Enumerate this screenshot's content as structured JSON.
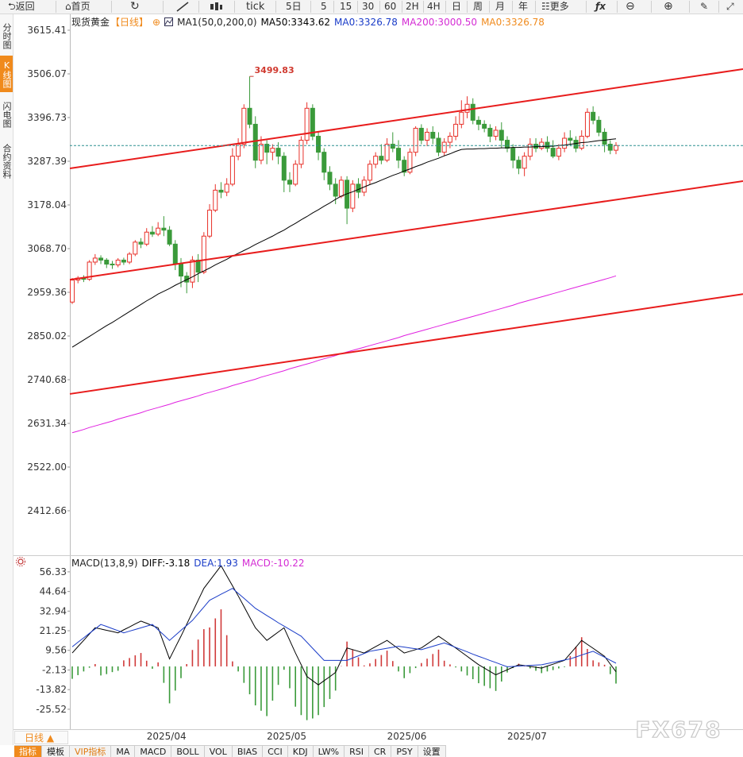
{
  "toolbar": {
    "back": "返回",
    "home": "首页",
    "periods": [
      "tick",
      "5日",
      "5",
      "15",
      "30",
      "60",
      "2H",
      "4H",
      "日",
      "周",
      "月",
      "年"
    ],
    "more": "更多"
  },
  "side_tabs": [
    "分时图",
    "K线图",
    "闪电图",
    "合约资料"
  ],
  "period_selector": "日线",
  "indicator_tabs": [
    "指标",
    "模板",
    "VIP指标",
    "MA",
    "MACD",
    "BOLL",
    "VOL",
    "BIAS",
    "CCI",
    "KDJ",
    "LW%",
    "RSI",
    "CR",
    "PSY",
    "设置"
  ],
  "watermark": "FX678",
  "chart_data": [
    {
      "type": "candlestick",
      "title": "现货黄金",
      "subtitle": "【日线】",
      "indicator": "MA1(50,0,200,0)",
      "legend": [
        {
          "label": "MA50:3343.62",
          "color": "#000000"
        },
        {
          "label": "MA0:3326.78",
          "color": "#1a3cc8"
        },
        {
          "label": "MA200:3000.50",
          "color": "#d42cd4"
        },
        {
          "label": "MA0:3326.78",
          "color": "#f08a1c"
        }
      ],
      "categories": [
        null,
        null,
        null,
        null,
        null,
        null,
        null,
        null,
        null,
        null,
        null,
        null,
        null,
        "2025/04",
        null,
        null,
        null,
        null,
        null,
        null,
        null,
        null,
        null,
        null,
        null,
        null,
        null,
        null,
        null,
        null,
        null,
        null,
        null,
        null,
        "2025/05",
        null,
        null,
        null,
        null,
        null,
        null,
        null,
        null,
        null,
        null,
        null,
        null,
        null,
        null,
        null,
        null,
        null,
        null,
        null,
        null,
        "2025/06",
        null,
        null,
        null,
        null,
        null,
        null,
        null,
        null,
        null,
        null,
        null,
        null,
        null,
        null,
        null,
        null,
        null,
        null,
        null,
        null,
        "2025/07",
        null,
        null,
        null,
        null,
        null,
        null,
        null,
        null,
        null,
        null,
        null,
        null,
        null,
        null,
        null,
        null,
        null,
        null,
        null
      ],
      "open": [
        2935,
        2990,
        2995,
        2992,
        3035,
        3045,
        3040,
        3030,
        3028,
        3040,
        3035,
        3055,
        3085,
        3080,
        3110,
        3105,
        3120,
        3115,
        3080,
        3030,
        3000,
        2985,
        3040,
        3010,
        3100,
        3165,
        3215,
        3210,
        3230,
        3300,
        3330,
        3420,
        3380,
        3290,
        3330,
        3310,
        3320,
        3300,
        3240,
        3230,
        3280,
        3340,
        3420,
        3350,
        3310,
        3260,
        3230,
        3200,
        3240,
        3170,
        3230,
        3210,
        3240,
        3280,
        3300,
        3290,
        3330,
        3320,
        3290,
        3260,
        3310,
        3370,
        3340,
        3360,
        3345,
        3310,
        3335,
        3350,
        3380,
        3410,
        3430,
        3390,
        3380,
        3370,
        3350,
        3365,
        3340,
        3320,
        3290,
        3270,
        3300,
        3330,
        3320,
        3335,
        3320,
        3300,
        3320,
        3345,
        3340,
        3320,
        3350,
        3410,
        3390,
        3360,
        3330,
        3315
      ],
      "high": [
        2995,
        3000,
        3002,
        3040,
        3055,
        3052,
        3045,
        3038,
        3045,
        3046,
        3060,
        3090,
        3095,
        3120,
        3125,
        3135,
        3150,
        3125,
        3090,
        3045,
        3010,
        3050,
        3055,
        3110,
        3180,
        3230,
        3235,
        3245,
        3320,
        3345,
        3430,
        3499.83,
        3400,
        3350,
        3340,
        3330,
        3335,
        3310,
        3260,
        3290,
        3350,
        3435,
        3430,
        3360,
        3320,
        3275,
        3245,
        3250,
        3250,
        3240,
        3245,
        3250,
        3290,
        3310,
        3330,
        3345,
        3360,
        3340,
        3300,
        3320,
        3375,
        3380,
        3370,
        3375,
        3360,
        3345,
        3360,
        3400,
        3440,
        3450,
        3445,
        3400,
        3390,
        3380,
        3375,
        3385,
        3350,
        3330,
        3300,
        3310,
        3345,
        3345,
        3345,
        3350,
        3340,
        3330,
        3360,
        3365,
        3350,
        3365,
        3420,
        3425,
        3400,
        3370,
        3340,
        3335
      ],
      "low": [
        2930,
        2982,
        2985,
        2988,
        3028,
        3030,
        3020,
        3018,
        3022,
        3028,
        3030,
        3050,
        3070,
        3075,
        3098,
        3100,
        3100,
        3075,
        3015,
        2972,
        2957,
        2970,
        2985,
        3005,
        3095,
        3160,
        3195,
        3200,
        3225,
        3290,
        3320,
        3370,
        3270,
        3280,
        3280,
        3290,
        3280,
        3210,
        3210,
        3225,
        3270,
        3330,
        3340,
        3290,
        3240,
        3215,
        3180,
        3195,
        3130,
        3160,
        3195,
        3200,
        3230,
        3270,
        3280,
        3285,
        3310,
        3270,
        3250,
        3255,
        3300,
        3330,
        3325,
        3330,
        3300,
        3300,
        3320,
        3340,
        3370,
        3395,
        3380,
        3365,
        3360,
        3335,
        3340,
        3320,
        3310,
        3270,
        3255,
        3250,
        3290,
        3310,
        3315,
        3310,
        3295,
        3290,
        3310,
        3325,
        3310,
        3315,
        3345,
        3380,
        3350,
        3310,
        3305,
        3305
      ],
      "close": [
        2990,
        2995,
        2992,
        3035,
        3045,
        3040,
        3030,
        3028,
        3040,
        3035,
        3055,
        3085,
        3080,
        3110,
        3105,
        3120,
        3115,
        3080,
        3030,
        3000,
        2985,
        3040,
        3010,
        3100,
        3165,
        3215,
        3210,
        3230,
        3300,
        3330,
        3420,
        3380,
        3290,
        3330,
        3310,
        3320,
        3300,
        3240,
        3230,
        3280,
        3340,
        3420,
        3350,
        3310,
        3260,
        3230,
        3200,
        3240,
        3170,
        3230,
        3210,
        3240,
        3280,
        3300,
        3290,
        3330,
        3320,
        3290,
        3260,
        3310,
        3370,
        3340,
        3360,
        3345,
        3310,
        3335,
        3350,
        3380,
        3410,
        3430,
        3390,
        3380,
        3370,
        3350,
        3365,
        3340,
        3320,
        3290,
        3270,
        3300,
        3330,
        3320,
        3335,
        3320,
        3300,
        3320,
        3345,
        3340,
        3320,
        3350,
        3410,
        3390,
        3360,
        3330,
        3315,
        3326.78
      ],
      "up_color": "#e8312a",
      "down_color": "#3a9a3a",
      "price_line_color": "#2a9090",
      "series": [
        {
          "color": "#000000",
          "values": [
            2822,
            2831,
            2840,
            2849,
            2858,
            2867,
            2876,
            2884,
            2893,
            2902,
            2911,
            2920,
            2929,
            2938,
            2946,
            2955,
            2962,
            2969,
            2977,
            2984,
            2991,
            2998,
            3006,
            3013,
            3020,
            3028,
            3035,
            3042,
            3050,
            3057,
            3064,
            3071,
            3079,
            3086,
            3093,
            3100,
            3108,
            3115,
            3124,
            3132,
            3141,
            3149,
            3158,
            3166,
            3175,
            3183,
            3192,
            3200,
            3206,
            3211,
            3217,
            3223,
            3229,
            3234,
            3240,
            3246,
            3252,
            3257,
            3263,
            3268,
            3274,
            3279,
            3285,
            3290,
            3295,
            3301,
            3306,
            3312,
            3317,
            3318,
            3318,
            3319,
            3319,
            3320,
            3320,
            3321,
            3321,
            3322,
            3322,
            3323,
            3323,
            3324,
            3324,
            3325,
            3325,
            3327,
            3328,
            3330,
            3332,
            3334,
            3335,
            3337,
            3339,
            3340,
            3342,
            3343.62
          ]
        },
        {
          "color": "#e020e0",
          "values": [
            2608,
            2612,
            2616,
            2621,
            2625,
            2629,
            2633,
            2637,
            2642,
            2646,
            2650,
            2654,
            2658,
            2663,
            2667,
            2671,
            2675,
            2679,
            2684,
            2688,
            2692,
            2696,
            2700,
            2705,
            2709,
            2713,
            2717,
            2721,
            2726,
            2730,
            2734,
            2738,
            2742,
            2747,
            2751,
            2755,
            2759,
            2763,
            2768,
            2772,
            2776,
            2780,
            2784,
            2789,
            2793,
            2797,
            2801,
            2806,
            2810,
            2814,
            2818,
            2822,
            2826,
            2830,
            2834,
            2838,
            2842,
            2846,
            2851,
            2855,
            2859,
            2863,
            2867,
            2871,
            2875,
            2879,
            2883,
            2887,
            2891,
            2895,
            2899,
            2903,
            2907,
            2911,
            2915,
            2919,
            2923,
            2927,
            2932,
            2936,
            2940,
            2944,
            2948,
            2952,
            2956,
            2960,
            2964,
            2968,
            2972,
            2976,
            2980,
            2984,
            2988,
            2992,
            2996,
            3000.5
          ]
        }
      ],
      "trendlines": [
        {
          "color": "#e81c1c",
          "values": [
            3269.5,
            3518
          ]
        },
        {
          "color": "#e81c1c",
          "values": [
            2991,
            3237.7
          ]
        },
        {
          "color": "#e81c1c",
          "values": [
            2705,
            2955
          ]
        }
      ],
      "ylim": [
        2303.3,
        3655.2
      ],
      "yticks": [
        3615.41,
        3506.07,
        3396.73,
        3287.39,
        3178.04,
        {
          "value": 3068.7,
          "label": "3068.70"
        },
        2959.36,
        2850.02,
        2740.68,
        2631.34,
        {
          "value": 2522,
          "label": "2522.00"
        },
        2412.66
      ]
    },
    {
      "type": "macd",
      "title": "MACD(13,8,9)",
      "series": [
        {
          "name": "DIFF:-3.18",
          "color": "#000000",
          "values": [
            8,
            11.8,
            15.5,
            19.3,
            23,
            22.3,
            21.5,
            20.8,
            20,
            21.8,
            23.5,
            25.3,
            27,
            25.7,
            24.3,
            23,
            13.8,
            4.5,
            11.3,
            18,
            25.1,
            32.3,
            39.4,
            46.5,
            51,
            55.5,
            60,
            54,
            48,
            42,
            35.7,
            29.3,
            23,
            19.3,
            15.5,
            18,
            20.5,
            23,
            15.5,
            8,
            1,
            -6,
            -8.5,
            -11,
            -8.5,
            -6.1,
            -3.6,
            3.7,
            11,
            10,
            9,
            8,
            9.9,
            11.8,
            13.6,
            15.5,
            13,
            10.5,
            8,
            9,
            10,
            11,
            13.3,
            15.7,
            18,
            15.7,
            13.3,
            11,
            8.5,
            6,
            3.5,
            1,
            -1,
            -3,
            -5,
            -3.5,
            -2,
            -0.5,
            1,
            0.5,
            0,
            -0.5,
            -1,
            0.2,
            1.3,
            2.5,
            3.6,
            7.6,
            11.5,
            15.5,
            13.1,
            10.8,
            8.4,
            6,
            1.4,
            -3.18
          ]
        },
        {
          "name": "DEA:1.93",
          "color": "#1a3cc8",
          "values": [
            11.7,
            14.4,
            17,
            19.7,
            22.3,
            25,
            23.8,
            22.5,
            21.3,
            20,
            21,
            22,
            23,
            24,
            25,
            21.8,
            18.7,
            15.5,
            18.5,
            21.5,
            24.4,
            27.4,
            31.4,
            35.4,
            39.4,
            41.2,
            43,
            44.7,
            46.5,
            43.5,
            40.6,
            37.6,
            34.6,
            32.5,
            30.3,
            28.2,
            26,
            24,
            22,
            20,
            18,
            14.4,
            10.8,
            7.2,
            3.6,
            3.6,
            3.6,
            3.6,
            3.6,
            5,
            6.3,
            7.7,
            9,
            9.6,
            10.2,
            10.8,
            11.4,
            12,
            11.5,
            11,
            10.5,
            10,
            11,
            12,
            13,
            14,
            12.7,
            11.3,
            10,
            8.7,
            7.3,
            6,
            4.8,
            3.5,
            2.3,
            1,
            -0.2,
            0,
            0.2,
            0.4,
            0.6,
            0.8,
            1,
            1.7,
            2.4,
            3.1,
            3.8,
            4.5,
            5.6,
            6.8,
            7.9,
            9,
            7.2,
            5.5,
            3.7,
            1.93
          ]
        }
      ],
      "histogram": {
        "name": "MACD:-10.22",
        "color": "#d42cd4",
        "up_color": "#d03a3a",
        "down_color": "#3a9a3a",
        "values": [
          -7.4,
          -5.2,
          -3,
          -0.8,
          1.4,
          -5.4,
          -4.6,
          -3.4,
          -2.6,
          3.6,
          5,
          6.6,
          8,
          3.4,
          -1.4,
          2.4,
          -9.8,
          -22,
          -14.4,
          -7,
          1.4,
          9.8,
          16,
          22.2,
          23.2,
          28.6,
          34,
          18.6,
          3,
          -3,
          -9.8,
          -16.6,
          -23.2,
          -26.4,
          -29.6,
          -20.4,
          -11,
          -2,
          -13,
          -24,
          -29,
          -32,
          -31,
          -29,
          -24.2,
          -19.4,
          -14.4,
          0.2,
          14.8,
          10,
          5.4,
          0.6,
          1.8,
          4.4,
          6.8,
          9.4,
          3.2,
          -3,
          -7,
          -4,
          -1,
          2,
          4.6,
          7.4,
          10,
          3.4,
          1.2,
          -0.6,
          -3,
          -5.4,
          -7.6,
          -10,
          -11.6,
          -13,
          -14.6,
          -9,
          -3.6,
          -1,
          1.6,
          0.2,
          -1.2,
          -2.6,
          -4,
          -3,
          -2.2,
          -1.2,
          -0.4,
          6.2,
          11.8,
          17.4,
          10.4,
          3.6,
          2.4,
          1,
          -4.6,
          -10.22
        ]
      },
      "ylim": [
        -37.4,
        64.8
      ],
      "yticks": [
        56.33,
        44.64,
        32.94,
        21.25,
        9.56,
        -2.13,
        -13.82,
        -25.52
      ]
    }
  ]
}
